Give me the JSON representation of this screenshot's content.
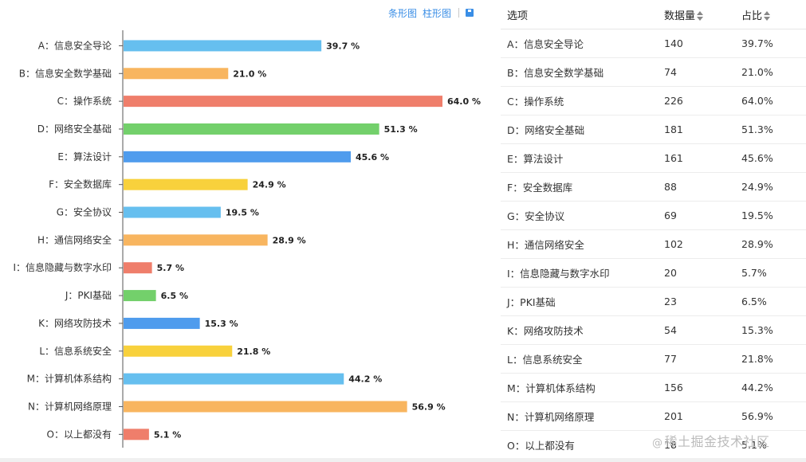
{
  "toolbar": {
    "bar_label": "条形图",
    "column_label": "柱形图"
  },
  "chart_data": {
    "type": "bar",
    "orientation": "horizontal",
    "categories": [
      "A：信息安全导论",
      "B：信息安全数学基础",
      "C：操作系统",
      "D：网络安全基础",
      "E：算法设计",
      "F：安全数据库",
      "G：安全协议",
      "H：通信网络安全",
      "I：信息隐藏与数字水印",
      "J：PKI基础",
      "K：网络攻防技术",
      "L：信息系统安全",
      "M：计算机体系结构",
      "N：计算机网络原理",
      "O：以上都没有"
    ],
    "values": [
      39.7,
      21.0,
      64.0,
      51.3,
      45.6,
      24.9,
      19.5,
      28.9,
      5.7,
      6.5,
      15.3,
      21.8,
      44.2,
      56.9,
      5.1
    ],
    "value_labels": [
      "39.7 %",
      "21.0 %",
      "64.0 %",
      "51.3 %",
      "45.6 %",
      "24.9 %",
      "19.5 %",
      "28.9 %",
      "5.7 %",
      "6.5 %",
      "15.3 %",
      "21.8 %",
      "44.2 %",
      "56.9 %",
      "5.1 %"
    ],
    "colors": [
      "#66bfef",
      "#f8b55f",
      "#ef7e6b",
      "#73d06b",
      "#4f9ced",
      "#f8d13c"
    ],
    "xlim": [
      0,
      64.0
    ],
    "grid": false
  },
  "table": {
    "headers": [
      "选项",
      "数据量",
      "占比"
    ],
    "rows": [
      [
        "A：信息安全导论",
        "140",
        "39.7%"
      ],
      [
        "B：信息安全数学基础",
        "74",
        "21.0%"
      ],
      [
        "C：操作系统",
        "226",
        "64.0%"
      ],
      [
        "D：网络安全基础",
        "181",
        "51.3%"
      ],
      [
        "E：算法设计",
        "161",
        "45.6%"
      ],
      [
        "F：安全数据库",
        "88",
        "24.9%"
      ],
      [
        "G：安全协议",
        "69",
        "19.5%"
      ],
      [
        "H：通信网络安全",
        "102",
        "28.9%"
      ],
      [
        "I：信息隐藏与数字水印",
        "20",
        "5.7%"
      ],
      [
        "J：PKI基础",
        "23",
        "6.5%"
      ],
      [
        "K：网络攻防技术",
        "54",
        "15.3%"
      ],
      [
        "L：信息系统安全",
        "77",
        "21.8%"
      ],
      [
        "M：计算机体系结构",
        "156",
        "44.2%"
      ],
      [
        "N：计算机网络原理",
        "201",
        "56.9%"
      ],
      [
        "O：以上都没有",
        "18",
        "5.1%"
      ]
    ]
  },
  "watermark": {
    "text": "稀土掘金技术社区"
  }
}
